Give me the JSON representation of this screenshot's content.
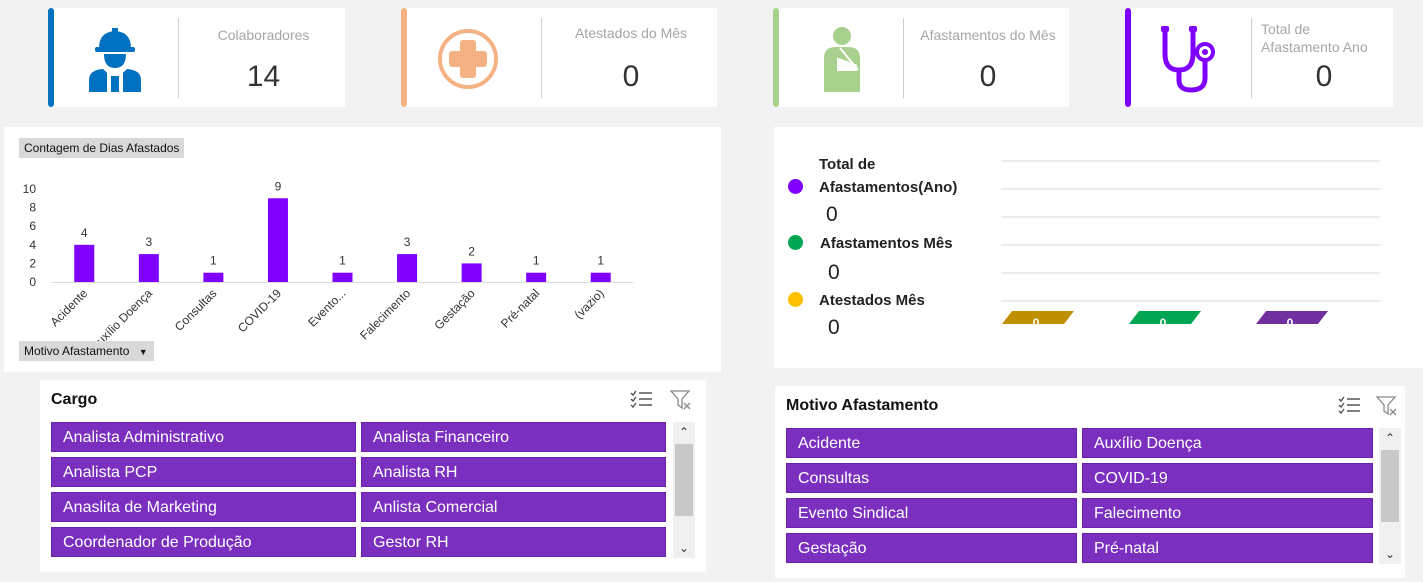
{
  "kpis": [
    {
      "label": "Colaboradores",
      "value": "14",
      "accent": "#0070c0",
      "icon": "worker-icon"
    },
    {
      "label": "Atestados do Mês",
      "value": "0",
      "accent": "#f4b183",
      "icon": "medical-cross-icon"
    },
    {
      "label": "Afastamentos do Mês",
      "value": "0",
      "accent": "#a9d18e",
      "icon": "injured-person-icon"
    },
    {
      "label": "Total de Afastamento Ano",
      "value": "0",
      "accent": "#7f00ff",
      "icon": "stethoscope-icon"
    }
  ],
  "chart_panel": {
    "title_chip": "Contagem de Dias Afastados",
    "field_chip": "Motivo Afastamento"
  },
  "chart_data": {
    "type": "bar",
    "categories": [
      "Acidente",
      "Auxílio Doença",
      "Consultas",
      "COVID-19",
      "Evento...",
      "Falecimento",
      "Gestação",
      "Pré-natal",
      "(vazio)"
    ],
    "values": [
      4,
      3,
      1,
      9,
      1,
      3,
      2,
      1,
      1
    ],
    "ylim": [
      0,
      10
    ],
    "yticks": [
      0,
      2,
      4,
      6,
      8,
      10
    ],
    "bar_color": "#7f00ff",
    "grid": false
  },
  "legend_panel": {
    "items": [
      {
        "label_line1": "Total de",
        "label_line2": "Afastamentos(Ano)",
        "value": "0",
        "color": "#7f00ff"
      },
      {
        "label_line1": "Afastamentos Mês",
        "label_line2": "",
        "value": "0",
        "color": "#00a651"
      },
      {
        "label_line1": "Atestados Mês",
        "label_line2": "",
        "value": "0",
        "color": "#ffc000"
      }
    ],
    "bars": [
      {
        "label": "0",
        "color": "#bf9000"
      },
      {
        "label": "0",
        "color": "#00a651"
      },
      {
        "label": "0",
        "color": "#7030a0"
      }
    ]
  },
  "cargo_slicer": {
    "title": "Cargo",
    "items": [
      "Analista Administrativo",
      "Analista Financeiro",
      "Analista PCP",
      "Analista RH",
      "Anaslita de Marketing",
      "Anlista Comercial",
      "Coordenador de Produção",
      "Gestor RH"
    ]
  },
  "motivo_slicer": {
    "title": "Motivo Afastamento",
    "items": [
      "Acidente",
      "Auxílio Doença",
      "Consultas",
      "COVID-19",
      "Evento Sindical",
      "Falecimento",
      "Gestação",
      "Pré-natal"
    ]
  }
}
